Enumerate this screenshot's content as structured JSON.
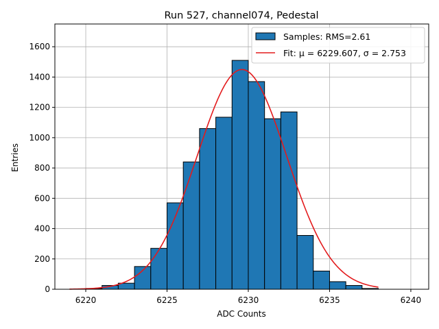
{
  "chart_data": {
    "type": "bar",
    "title": "Run 527, channel074, Pedestal",
    "xlabel": "ADC Counts",
    "ylabel": "Entries",
    "xlim": [
      6218.1,
      6241.1
    ],
    "ylim": [
      0,
      1750
    ],
    "x_ticks": [
      6220,
      6225,
      6230,
      6235,
      6240
    ],
    "y_ticks": [
      0,
      200,
      400,
      600,
      800,
      1000,
      1200,
      1400,
      1600
    ],
    "grid": true,
    "legend_position": "top-right",
    "bar_color": "#1f77b4",
    "bar_edge_color": "#000000",
    "fit_color": "#e31a1c",
    "series": [
      {
        "name": "Samples: RMS=2.61",
        "kind": "histogram",
        "bin_width": 1,
        "bin_left_edges": [
          6220,
          6221,
          6222,
          6223,
          6224,
          6225,
          6226,
          6227,
          6228,
          6229,
          6230,
          6231,
          6232,
          6233,
          6234,
          6235,
          6236,
          6237
        ],
        "values": [
          5,
          25,
          40,
          150,
          270,
          570,
          840,
          1060,
          1135,
          1510,
          1370,
          1125,
          1170,
          355,
          120,
          50,
          25,
          5
        ]
      },
      {
        "name": "Fit: μ = 6229.607, σ = 2.753",
        "kind": "gaussian-fit",
        "mu": 6229.607,
        "sigma": 2.753,
        "amplitude": 1450,
        "x_range": [
          6219,
          6238
        ]
      }
    ]
  }
}
